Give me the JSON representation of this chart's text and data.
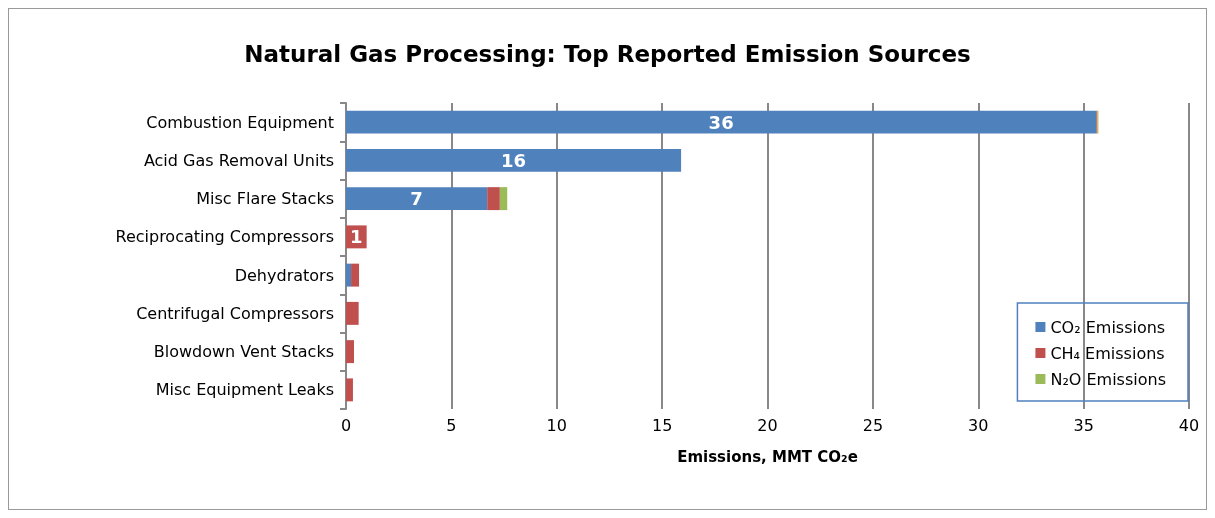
{
  "chart_data": {
    "type": "bar",
    "orientation": "horizontal",
    "stacked": true,
    "title": "Natural Gas Processing: Top Reported Emission Sources",
    "xlabel": "Emissions, MMT CO₂e",
    "categories": [
      "Combustion Equipment",
      "Acid Gas Removal Units",
      "Misc Flare Stacks",
      "Reciprocating Compressors",
      "Dehydrators",
      "Centrifugal Compressors",
      "Blowdown Vent Stacks",
      "Misc Equipment Leaks"
    ],
    "series": [
      {
        "name": "CO₂ Emissions",
        "color": "#4f81bd",
        "values": [
          35.6,
          15.9,
          6.7,
          0,
          0.24,
          0,
          0,
          0
        ],
        "value_labels": [
          "36",
          "16",
          "7",
          null,
          null,
          null,
          null,
          null
        ]
      },
      {
        "name": "CH₄ Emissions",
        "color": "#c0504d",
        "values": [
          0.05,
          0,
          0.6,
          0.98,
          0.38,
          0.6,
          0.38,
          0.33
        ],
        "value_labels": [
          null,
          null,
          null,
          "1",
          null,
          null,
          null,
          null
        ]
      },
      {
        "name": "N₂O Emissions",
        "color": "#9bbb59",
        "values": [
          0.05,
          0,
          0.35,
          0,
          0,
          0,
          0,
          0
        ]
      }
    ],
    "xlim": [
      0,
      40
    ],
    "xticks": [
      0,
      5,
      10,
      15,
      20,
      25,
      30,
      35,
      40
    ],
    "grid": "x",
    "legend": "bottom right"
  }
}
